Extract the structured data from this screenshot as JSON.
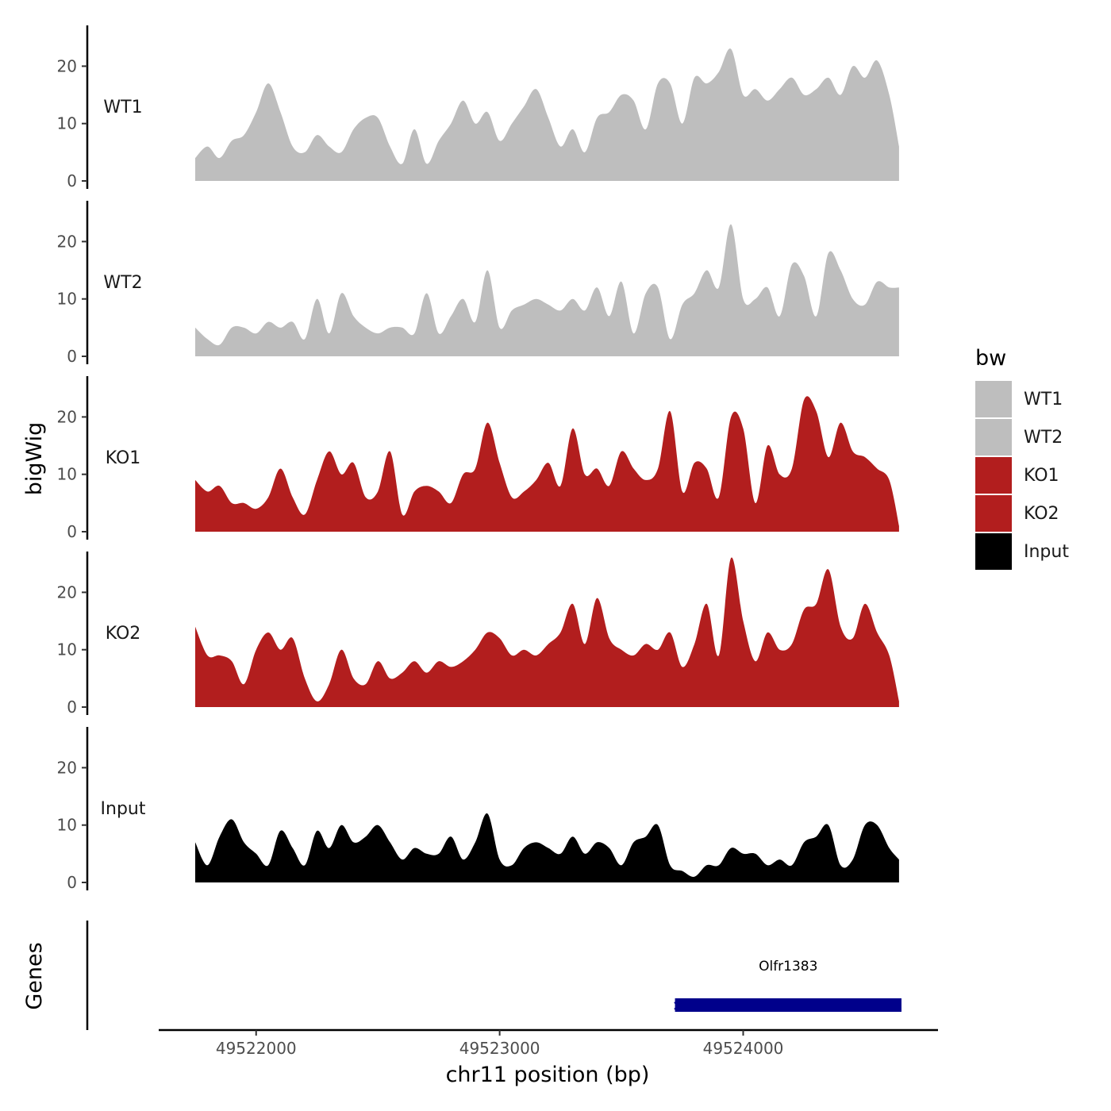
{
  "chart_data": {
    "type": "area",
    "chromosome": "chr11",
    "xlabel": "chr11 position (bp)",
    "ylabel": "bigWig",
    "genes_label": "Genes",
    "xlim": [
      49521600,
      49524800
    ],
    "x_ticks": [
      49522000,
      49523000,
      49524000
    ],
    "ylim": [
      0,
      27
    ],
    "y_ticks": [
      0,
      10,
      20
    ],
    "x": [
      49521750,
      49521800,
      49521850,
      49521900,
      49521950,
      49522000,
      49522050,
      49522100,
      49522150,
      49522200,
      49522250,
      49522300,
      49522350,
      49522400,
      49522450,
      49522500,
      49522550,
      49522600,
      49522650,
      49522700,
      49522750,
      49522800,
      49522850,
      49522900,
      49522950,
      49523000,
      49523050,
      49523100,
      49523150,
      49523200,
      49523250,
      49523300,
      49523350,
      49523400,
      49523450,
      49523500,
      49523550,
      49523600,
      49523650,
      49523700,
      49523750,
      49523800,
      49523850,
      49523900,
      49523950,
      49524000,
      49524050,
      49524100,
      49524150,
      49524200,
      49524250,
      49524300,
      49524350,
      49524400,
      49524450,
      49524500,
      49524550,
      49524600,
      49524640
    ],
    "series": [
      {
        "name": "WT1",
        "color": "#bebebe",
        "values": [
          4,
          6,
          4,
          7,
          8,
          12,
          17,
          12,
          6,
          5,
          8,
          6,
          5,
          9,
          11,
          11,
          6,
          3,
          9,
          3,
          7,
          10,
          14,
          10,
          12,
          7,
          10,
          13,
          16,
          11,
          6,
          9,
          5,
          11,
          12,
          15,
          14,
          9,
          17,
          17,
          10,
          18,
          17,
          19,
          23,
          15,
          16,
          14,
          16,
          18,
          15,
          16,
          18,
          15,
          20,
          18,
          21,
          15,
          6
        ]
      },
      {
        "name": "WT2",
        "color": "#bebebe",
        "values": [
          5,
          3,
          2,
          5,
          5,
          4,
          6,
          5,
          6,
          3,
          10,
          4,
          11,
          7,
          5,
          4,
          5,
          5,
          4,
          11,
          4,
          7,
          10,
          6,
          15,
          5,
          8,
          9,
          10,
          9,
          8,
          10,
          8,
          12,
          7,
          13,
          4,
          11,
          12,
          3,
          9,
          11,
          15,
          12,
          23,
          10,
          10,
          12,
          7,
          16,
          14,
          7,
          18,
          15,
          10,
          9,
          13,
          12,
          12
        ]
      },
      {
        "name": "KO1",
        "color": "#b21e1e",
        "values": [
          9,
          7,
          8,
          5,
          5,
          4,
          6,
          11,
          6,
          3,
          9,
          14,
          10,
          12,
          6,
          7,
          14,
          3,
          7,
          8,
          7,
          5,
          10,
          11,
          19,
          12,
          6,
          7,
          9,
          12,
          8,
          18,
          10,
          11,
          8,
          14,
          11,
          9,
          11,
          21,
          7,
          12,
          11,
          6,
          20,
          18,
          5,
          15,
          10,
          11,
          23,
          21,
          13,
          19,
          14,
          13,
          11,
          9,
          1
        ]
      },
      {
        "name": "KO2",
        "color": "#b21e1e",
        "values": [
          14,
          9,
          9,
          8,
          4,
          10,
          13,
          10,
          12,
          5,
          1,
          4,
          10,
          5,
          4,
          8,
          5,
          6,
          8,
          6,
          8,
          7,
          8,
          10,
          13,
          12,
          9,
          10,
          9,
          11,
          13,
          18,
          11,
          19,
          12,
          10,
          9,
          11,
          10,
          13,
          7,
          11,
          18,
          9,
          26,
          15,
          8,
          13,
          10,
          11,
          17,
          18,
          24,
          14,
          12,
          18,
          13,
          9,
          1
        ]
      },
      {
        "name": "Input",
        "color": "#000000",
        "values": [
          7,
          3,
          8,
          11,
          7,
          5,
          3,
          9,
          6,
          3,
          9,
          6,
          10,
          7,
          8,
          10,
          7,
          4,
          6,
          5,
          5,
          8,
          4,
          7,
          12,
          4,
          3,
          6,
          7,
          6,
          5,
          8,
          5,
          7,
          6,
          3,
          7,
          8,
          10,
          3,
          2,
          1,
          3,
          3,
          6,
          5,
          5,
          3,
          4,
          3,
          7,
          8,
          10,
          3,
          4,
          10,
          10,
          6,
          4
        ]
      }
    ],
    "genes": [
      {
        "name": "Olfr1383",
        "start": 49523720,
        "end": 49524650,
        "color": "#00008b"
      }
    ],
    "legend": {
      "title": "bw",
      "position": "right",
      "entries": [
        {
          "label": "WT1",
          "color": "#bebebe"
        },
        {
          "label": "WT2",
          "color": "#bebebe"
        },
        {
          "label": "KO1",
          "color": "#b21e1e"
        },
        {
          "label": "KO2",
          "color": "#b21e1e"
        },
        {
          "label": "Input",
          "color": "#000000"
        }
      ]
    }
  }
}
